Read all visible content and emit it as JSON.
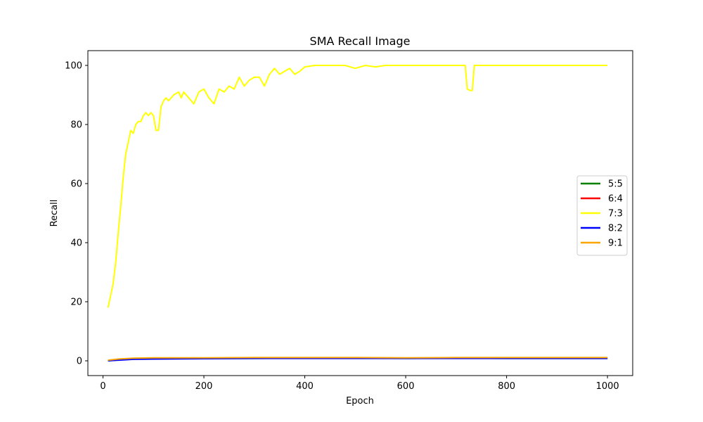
{
  "chart_data": {
    "type": "line",
    "title": "SMA Recall Image",
    "xlabel": "Epoch",
    "ylabel": "Recall",
    "xlim": [
      -30,
      1050
    ],
    "ylim": [
      -5,
      105
    ],
    "xticks": [
      0,
      200,
      400,
      600,
      800,
      1000
    ],
    "yticks": [
      0,
      20,
      40,
      60,
      80,
      100
    ],
    "legend_position": "center-right",
    "grid": false,
    "series": [
      {
        "name": "5:5",
        "color": "#008000",
        "x": [
          10,
          30,
          60,
          100,
          200,
          300,
          400,
          500,
          600,
          700,
          800,
          900,
          1000
        ],
        "y": [
          0.0,
          0.3,
          0.6,
          0.7,
          0.8,
          0.8,
          0.9,
          0.9,
          0.8,
          0.9,
          0.8,
          0.8,
          0.8
        ]
      },
      {
        "name": "6:4",
        "color": "#ff0000",
        "x": [
          10,
          30,
          60,
          100,
          200,
          300,
          400,
          500,
          600,
          700,
          800,
          900,
          1000
        ],
        "y": [
          0.1,
          0.4,
          0.7,
          0.8,
          0.8,
          0.9,
          0.9,
          0.9,
          0.9,
          0.9,
          0.9,
          0.9,
          0.9
        ]
      },
      {
        "name": "7:3",
        "color": "#ffff00",
        "x": [
          10,
          15,
          20,
          25,
          30,
          35,
          40,
          45,
          50,
          55,
          60,
          65,
          70,
          75,
          80,
          85,
          90,
          95,
          100,
          105,
          110,
          115,
          120,
          125,
          130,
          140,
          150,
          155,
          160,
          170,
          180,
          190,
          200,
          210,
          220,
          230,
          240,
          250,
          260,
          270,
          280,
          290,
          300,
          310,
          320,
          330,
          340,
          350,
          360,
          370,
          380,
          390,
          400,
          420,
          440,
          460,
          480,
          490,
          500,
          520,
          540,
          560,
          580,
          600,
          650,
          700,
          718,
          722,
          728,
          732,
          736,
          760,
          800,
          900,
          1000
        ],
        "y": [
          18,
          22,
          26,
          33,
          43,
          52,
          62,
          70,
          74,
          78,
          77,
          80,
          81,
          81,
          83,
          84,
          83,
          84,
          83,
          78,
          78,
          86,
          88,
          89,
          88,
          90,
          91,
          89,
          91,
          89,
          87,
          91,
          92,
          89,
          87,
          92,
          91,
          93,
          92,
          96,
          93,
          95,
          96,
          96,
          93,
          97,
          99,
          97,
          98,
          99,
          97,
          98,
          99.5,
          100,
          100,
          100,
          100,
          99.5,
          99,
          100,
          99.5,
          100,
          100,
          100,
          100,
          100,
          100,
          92,
          91.5,
          91.5,
          100,
          100,
          100,
          100,
          100
        ]
      },
      {
        "name": "8:2",
        "color": "#0000ff",
        "x": [
          10,
          30,
          60,
          100,
          200,
          300,
          400,
          500,
          600,
          700,
          800,
          900,
          1000
        ],
        "y": [
          0.0,
          0.2,
          0.5,
          0.6,
          0.7,
          0.8,
          0.8,
          0.8,
          0.8,
          0.8,
          0.8,
          0.8,
          0.8
        ]
      },
      {
        "name": "9:1",
        "color": "#ffa500",
        "x": [
          10,
          30,
          60,
          100,
          200,
          300,
          400,
          500,
          600,
          700,
          800,
          900,
          1000
        ],
        "y": [
          0.2,
          0.6,
          0.9,
          1.0,
          1.0,
          1.1,
          1.1,
          1.1,
          1.0,
          1.1,
          1.1,
          1.1,
          1.1
        ]
      }
    ]
  }
}
